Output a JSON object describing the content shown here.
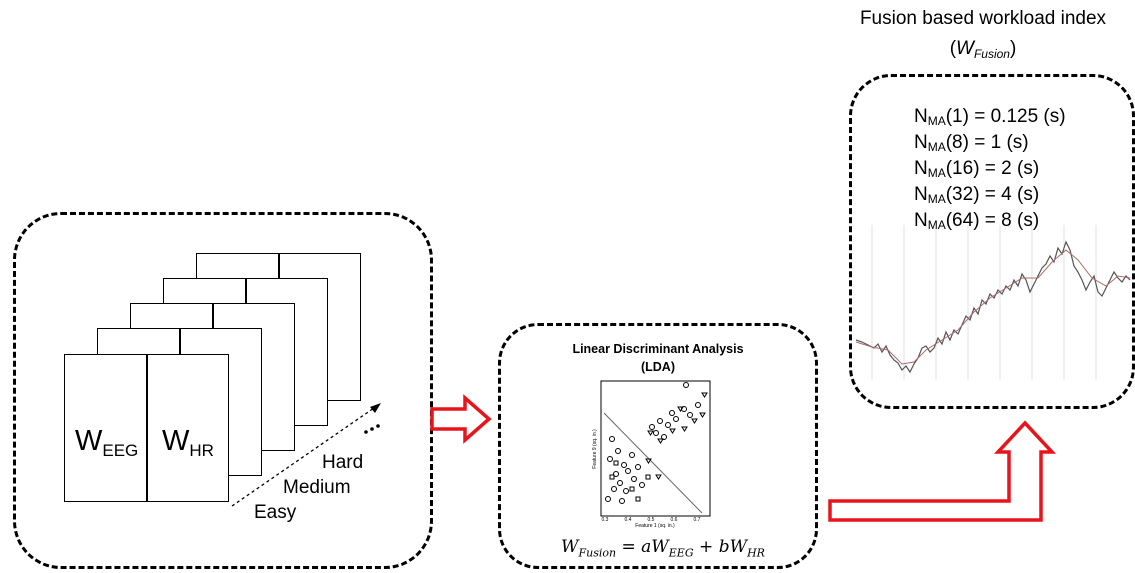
{
  "left_panel": {
    "labels": {
      "w_main": "W",
      "w_eeg_sub": "EEG",
      "w_hr_sub": "HR"
    },
    "difficulty_levels": [
      "Easy",
      "Medium",
      "Hard"
    ],
    "ellipsis": "..."
  },
  "lda_panel": {
    "title_line1": "Linear Discriminant Analysis",
    "title_line2": "(LDA)",
    "plot": {
      "xlabel": "Feature 1 (sq. in.)",
      "ylabel": "Feature 9 (sq. in.)",
      "x_ticks": [
        "0.3",
        "0.4",
        "0.5",
        "0.6",
        "0.7"
      ]
    },
    "formula": {
      "w": "W",
      "fusion_sub": "Fusion",
      "eq": " = ",
      "a": "a",
      "w2": "W",
      "eeg_sub": "EEG",
      "plus": " + ",
      "b": "b",
      "w3": "W",
      "hr_sub": "HR"
    }
  },
  "fusion_panel": {
    "title_line1": "Fusion based workload index",
    "title_paren_open": "(",
    "title_w": "W",
    "title_sub": "Fusion",
    "title_paren_close": ")",
    "nma_items": [
      {
        "n": "N",
        "sub": "MA",
        "rest": "(1) = 0.125 (s)"
      },
      {
        "n": "N",
        "sub": "MA",
        "rest": "(8) = 1 (s)"
      },
      {
        "n": "N",
        "sub": "MA",
        "rest": "(16) = 2 (s)"
      },
      {
        "n": "N",
        "sub": "MA",
        "rest": "(32) = 4 (s)"
      },
      {
        "n": "N",
        "sub": "MA",
        "rest": "(64) = 8 (s)"
      }
    ]
  },
  "colors": {
    "arrow": "#e8141b",
    "lines": "#000000"
  }
}
